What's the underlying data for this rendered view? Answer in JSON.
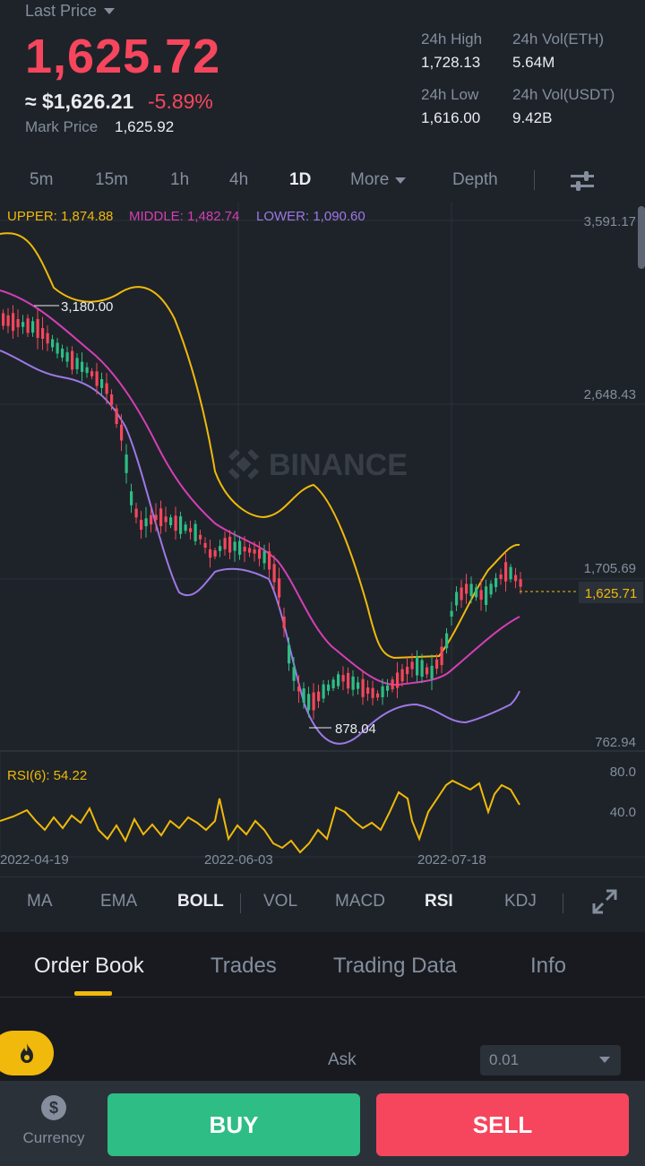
{
  "header": {
    "last_price_label": "Last Price",
    "price": "1,625.72",
    "usd_price": "≈ $1,626.21",
    "change": "-5.89%",
    "mark_label": "Mark Price",
    "mark_value": "1,625.92",
    "high_label": "24h High",
    "high_value": "1,728.13",
    "low_label": "24h Low",
    "low_value": "1,616.00",
    "vol_eth_label": "24h Vol(ETH)",
    "vol_eth_value": "5.64M",
    "vol_usdt_label": "24h Vol(USDT)",
    "vol_usdt_value": "9.42B"
  },
  "intervals": [
    "5m",
    "15m",
    "1h",
    "4h",
    "1D",
    "More",
    "Depth"
  ],
  "active_interval": "1D",
  "chart": {
    "upper": "UPPER: 1,874.88",
    "middle": "MIDDLE: 1,482.74",
    "lower": "LOWER: 1,090.60",
    "watermark": "BINANCE",
    "y_labels": [
      "3,591.17",
      "2,648.43",
      "1,705.69",
      "762.94"
    ],
    "last_tag": "1,625.71",
    "high_marker": "3,180.00",
    "low_marker": "878.04",
    "rsi_label": "RSI(6): 54.22",
    "rsi_ticks": [
      "80.0",
      "40.0"
    ],
    "dates": [
      "2022-04-19",
      "2022-06-03",
      "2022-07-18"
    ]
  },
  "chart_data": {
    "type": "candlestick",
    "y_axis_range": [
      762.94,
      3591.17
    ],
    "bollinger": {
      "upper": 1874.88,
      "middle": 1482.74,
      "lower": 1090.6
    },
    "last_price": 1625.71,
    "period_high": 3180.0,
    "period_low": 878.04,
    "rsi": {
      "period": 6,
      "value": 54.22,
      "range": [
        0,
        100
      ]
    },
    "colors": {
      "up": "#2ebd85",
      "down": "#f6465d",
      "upper": "#f0b90b",
      "middle": "#d43fb5",
      "lower": "#9d78e6",
      "rsi": "#f0b90b"
    }
  },
  "indicators": [
    "MA",
    "EMA",
    "BOLL",
    "VOL",
    "MACD",
    "RSI",
    "KDJ"
  ],
  "active_indicators": [
    "BOLL",
    "RSI"
  ],
  "tabs": [
    "Order Book",
    "Trades",
    "Trading Data",
    "Info"
  ],
  "active_tab": "Order Book",
  "orderbook": {
    "ask_label": "Ask",
    "precision": "0.01"
  },
  "bottom": {
    "currency_label": "Currency",
    "buy": "BUY",
    "sell": "SELL"
  }
}
